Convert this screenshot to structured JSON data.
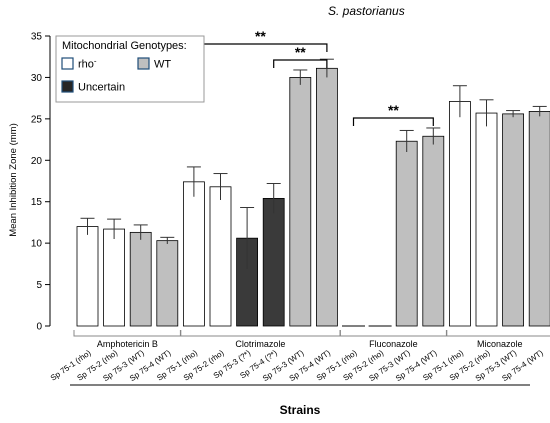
{
  "chart_data": {
    "type": "bar",
    "title": "S. pastorianus",
    "xlabel": "Strains",
    "ylabel": "Mean Inhibition Zone (mm)",
    "ylim": [
      0,
      35
    ],
    "yticks": [
      0,
      5,
      10,
      15,
      20,
      25,
      30,
      35
    ],
    "grid": false,
    "legend": {
      "title": "Mitochondrial Genotypes:",
      "position": "top-left",
      "entries": [
        {
          "label": "rho",
          "superscript": "-",
          "color": "#ffffff"
        },
        {
          "label": "WT",
          "color": "#bfbfbf"
        },
        {
          "label": "Uncertain",
          "color": "#262626"
        }
      ]
    },
    "groups": [
      {
        "name": "Amphotericin B",
        "bars": [
          {
            "strain": "Sp 75-1 (rho)",
            "value": 12.0,
            "error": 1.0,
            "genotype": "rho"
          },
          {
            "strain": "Sp 75-2 (rho)",
            "value": 11.7,
            "error": 1.2,
            "genotype": "rho"
          },
          {
            "strain": "Sp 75-3 (WT)",
            "value": 11.3,
            "error": 0.9,
            "genotype": "WT"
          },
          {
            "strain": "Sp 75-4 (WT)",
            "value": 10.3,
            "error": 0.4,
            "genotype": "WT"
          }
        ]
      },
      {
        "name": "Clotrimazole",
        "bars": [
          {
            "strain": "Sp 75-1 (rho)",
            "value": 17.4,
            "error": 1.8,
            "genotype": "rho"
          },
          {
            "strain": "Sp 75-2 (rho)",
            "value": 16.8,
            "error": 1.6,
            "genotype": "rho"
          },
          {
            "strain": "Sp 75-3 (?*)",
            "value": 10.6,
            "error": 3.7,
            "genotype": "Uncertain"
          },
          {
            "strain": "Sp 75-4 (?*)",
            "value": 15.4,
            "error": 1.8,
            "genotype": "Uncertain"
          },
          {
            "strain": "Sp 75-3 (WT)",
            "value": 30.0,
            "error": 0.9,
            "genotype": "WT"
          },
          {
            "strain": "Sp 75-4 (WT)",
            "value": 31.1,
            "error": 1.1,
            "genotype": "WT"
          }
        ]
      },
      {
        "name": "Fluconazole",
        "bars": [
          {
            "strain": "Sp 75-1 (rho)",
            "value": 0,
            "error": 0,
            "genotype": "rho"
          },
          {
            "strain": "Sp 75-2 (rho)",
            "value": 0,
            "error": 0,
            "genotype": "rho"
          },
          {
            "strain": "Sp 75-3 (WT)",
            "value": 22.3,
            "error": 1.3,
            "genotype": "WT"
          },
          {
            "strain": "Sp 75-4 (WT)",
            "value": 22.9,
            "error": 1.0,
            "genotype": "WT"
          }
        ]
      },
      {
        "name": "Miconazole",
        "bars": [
          {
            "strain": "Sp 75-1 (rho)",
            "value": 27.1,
            "error": 1.9,
            "genotype": "rho"
          },
          {
            "strain": "Sp 75-2 (rho)",
            "value": 25.7,
            "error": 1.6,
            "genotype": "rho"
          },
          {
            "strain": "Sp 75-3 (WT)",
            "value": 25.6,
            "error": 0.4,
            "genotype": "WT"
          },
          {
            "strain": "Sp 75-4 (WT)",
            "value": 25.9,
            "error": 0.6,
            "genotype": "WT"
          }
        ]
      }
    ],
    "significance": [
      {
        "label": "**",
        "group": "Clotrimazole",
        "from_bar": 0,
        "to_bar": 5
      },
      {
        "label": "**",
        "group": "Clotrimazole",
        "from_bar": 3,
        "to_bar": 5
      },
      {
        "label": "**",
        "group": "Fluconazole",
        "from_bar": 0,
        "to_bar": 3
      }
    ],
    "colors": {
      "rho": "#ffffff",
      "WT": "#bfbfbf",
      "Uncertain": "#3a3a3a",
      "axis": "#000000",
      "error": "#333333"
    }
  }
}
